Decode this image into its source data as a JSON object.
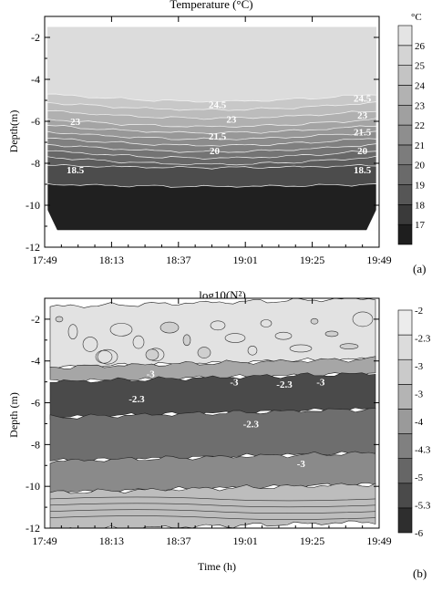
{
  "chart_data": [
    {
      "type": "heatmap",
      "title": "Temperature (°C)",
      "panel_label": "(a)",
      "xlabel": "",
      "ylabel": "Depth(m)",
      "xlim": [
        "17:49",
        "19:49"
      ],
      "ylim": [
        -12,
        -1
      ],
      "x_ticks": [
        "17:49",
        "18:13",
        "18:37",
        "19:01",
        "19:25",
        "19:49"
      ],
      "y_ticks": [
        -2,
        -4,
        -6,
        -8,
        -10,
        -12
      ],
      "colorbar_unit": "°C",
      "colorbar_levels": [
        "17",
        "18",
        "19",
        "20",
        "21",
        "22",
        "23",
        "24",
        "25",
        "26"
      ],
      "colorbar_colors": [
        "#1e1e1e",
        "#3a3a3a",
        "#565656",
        "#6a6a6a",
        "#7c7c7c",
        "#8e8e8e",
        "#a0a0a0",
        "#b2b2b2",
        "#c4c4c4",
        "#d4d4d4",
        "#e4e4e4"
      ],
      "band_depths": [
        {
          "temperature": 24.5,
          "depth": -4.7
        },
        {
          "temperature": 24,
          "depth": -5.1
        },
        {
          "temperature": 23.5,
          "depth": -5.5
        },
        {
          "temperature": 23,
          "depth": -5.9
        },
        {
          "temperature": 22.5,
          "depth": -6.2
        },
        {
          "temperature": 22,
          "depth": -6.5
        },
        {
          "temperature": 21.5,
          "depth": -6.8
        },
        {
          "temperature": 21,
          "depth": -7.1
        },
        {
          "temperature": 20.5,
          "depth": -7.4
        },
        {
          "temperature": 20,
          "depth": -7.7
        },
        {
          "temperature": 19,
          "depth": -8.1
        },
        {
          "temperature": 18.5,
          "depth": -9.0
        }
      ],
      "contour_labels": [
        {
          "text": "23",
          "time": "18:00",
          "depth": -6.0
        },
        {
          "text": "18.5",
          "time": "18:00",
          "depth": -8.3
        },
        {
          "text": "24.5",
          "time": "18:51",
          "depth": -5.2
        },
        {
          "text": "23",
          "time": "18:56",
          "depth": -5.9
        },
        {
          "text": "21.5",
          "time": "18:51",
          "depth": -6.7
        },
        {
          "text": "20",
          "time": "18:50",
          "depth": -7.4
        },
        {
          "text": "24.5",
          "time": "19:43",
          "depth": -4.9
        },
        {
          "text": "23",
          "time": "19:43",
          "depth": -5.7
        },
        {
          "text": "21.5",
          "time": "19:43",
          "depth": -6.5
        },
        {
          "text": "20",
          "time": "19:43",
          "depth": -7.4
        },
        {
          "text": "18.5",
          "time": "19:43",
          "depth": -8.3
        }
      ]
    },
    {
      "type": "heatmap",
      "title": "log10(N²)",
      "panel_label": "(b)",
      "xlabel": "Time (h)",
      "ylabel": "Depth (m)",
      "xlim": [
        "17:49",
        "19:49"
      ],
      "ylim": [
        -12,
        -1
      ],
      "x_ticks": [
        "17:49",
        "18:13",
        "18:37",
        "19:01",
        "19:25",
        "19:49"
      ],
      "y_ticks": [
        -2,
        -4,
        -6,
        -8,
        -10,
        -12
      ],
      "colorbar_levels": [
        "-2",
        "-2.3",
        "-3",
        "-3",
        "-4",
        "-4.3",
        "-5",
        "-5.3",
        "-6"
      ],
      "colorbar_colors": [
        "#2e2e2e",
        "#4a4a4a",
        "#666666",
        "#808080",
        "#9a9a9a",
        "#b4b4b4",
        "#cacaca",
        "#dcdcdc",
        "#ececec"
      ],
      "layers": [
        {
          "value": -5.5,
          "top": -1.2,
          "bottom": -4.1
        },
        {
          "value": -4.0,
          "top": -4.1,
          "bottom": -4.8
        },
        {
          "value": -2.3,
          "top": -4.8,
          "bottom": -6.5
        },
        {
          "value": -3.0,
          "top": -6.5,
          "bottom": -8.6
        },
        {
          "value": -3.5,
          "top": -8.6,
          "bottom": -10.1
        },
        {
          "value": -4.3,
          "top": -10.1,
          "bottom": -11.9
        }
      ],
      "contour_labels": [
        {
          "text": "-3",
          "time": "18:27",
          "depth": -4.6
        },
        {
          "text": "-2.3",
          "time": "18:22",
          "depth": -5.8
        },
        {
          "text": "-3",
          "time": "18:57",
          "depth": -5.0
        },
        {
          "text": "-2.3",
          "time": "19:15",
          "depth": -5.1
        },
        {
          "text": "-3",
          "time": "19:28",
          "depth": -5.0
        },
        {
          "text": "-2.3",
          "time": "19:03",
          "depth": -7.0
        },
        {
          "text": "-3",
          "time": "19:21",
          "depth": -8.9
        }
      ]
    }
  ]
}
